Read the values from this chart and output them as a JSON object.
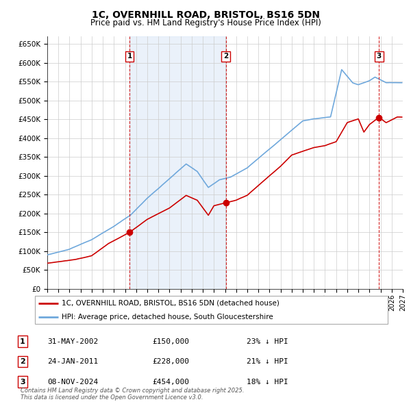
{
  "title": "1C, OVERNHILL ROAD, BRISTOL, BS16 5DN",
  "subtitle": "Price paid vs. HM Land Registry's House Price Index (HPI)",
  "ylim": [
    0,
    670000
  ],
  "yticks": [
    0,
    50000,
    100000,
    150000,
    200000,
    250000,
    300000,
    350000,
    400000,
    450000,
    500000,
    550000,
    600000,
    650000
  ],
  "ytick_labels": [
    "£0",
    "£50K",
    "£100K",
    "£150K",
    "£200K",
    "£250K",
    "£300K",
    "£350K",
    "£400K",
    "£450K",
    "£500K",
    "£550K",
    "£600K",
    "£650K"
  ],
  "background_color": "#ffffff",
  "grid_color": "#cccccc",
  "sale1_date": 2002.41,
  "sale1_price": 150000,
  "sale2_date": 2011.07,
  "sale2_price": 228000,
  "sale3_date": 2024.86,
  "sale3_price": 454000,
  "hpi_color": "#6fa8dc",
  "price_color": "#cc0000",
  "vline_color": "#cc0000",
  "shade_color": "#dce9f7",
  "legend_entry1": "1C, OVERNHILL ROAD, BRISTOL, BS16 5DN (detached house)",
  "legend_entry2": "HPI: Average price, detached house, South Gloucestershire",
  "table_rows": [
    {
      "num": "1",
      "date": "31-MAY-2002",
      "price": "£150,000",
      "pct": "23% ↓ HPI"
    },
    {
      "num": "2",
      "date": "24-JAN-2011",
      "price": "£228,000",
      "pct": "21% ↓ HPI"
    },
    {
      "num": "3",
      "date": "08-NOV-2024",
      "price": "£454,000",
      "pct": "18% ↓ HPI"
    }
  ],
  "footnote": "Contains HM Land Registry data © Crown copyright and database right 2025.\nThis data is licensed under the Open Government Licence v3.0.",
  "xstart": 1995,
  "xend": 2027,
  "hpi_anchors_t": [
    1995.0,
    1997.0,
    1999.0,
    2001.0,
    2002.5,
    2004.0,
    2007.5,
    2008.5,
    2009.5,
    2010.5,
    2011.5,
    2013.0,
    2015.0,
    2017.0,
    2018.0,
    2019.0,
    2020.5,
    2021.5,
    2022.5,
    2023.0,
    2024.0,
    2024.5,
    2025.5,
    2026.5
  ],
  "hpi_anchors_v": [
    90000,
    105000,
    130000,
    165000,
    195000,
    240000,
    330000,
    310000,
    268000,
    288000,
    295000,
    320000,
    370000,
    420000,
    445000,
    450000,
    455000,
    580000,
    545000,
    540000,
    550000,
    560000,
    545000,
    545000
  ],
  "red_anchors_t": [
    1995.0,
    1996.0,
    1997.5,
    1999.0,
    2000.5,
    2002.41,
    2004.0,
    2006.0,
    2007.5,
    2008.5,
    2009.5,
    2010.0,
    2011.07,
    2012.0,
    2013.0,
    2015.0,
    2016.0,
    2017.0,
    2018.0,
    2019.0,
    2020.0,
    2021.0,
    2022.0,
    2023.0,
    2023.5,
    2024.0,
    2024.86,
    2025.5,
    2026.5
  ],
  "red_anchors_v": [
    68000,
    72000,
    78000,
    88000,
    120000,
    150000,
    185000,
    215000,
    248000,
    235000,
    195000,
    220000,
    228000,
    235000,
    248000,
    300000,
    325000,
    355000,
    365000,
    375000,
    380000,
    390000,
    440000,
    450000,
    415000,
    435000,
    454000,
    440000,
    455000
  ]
}
